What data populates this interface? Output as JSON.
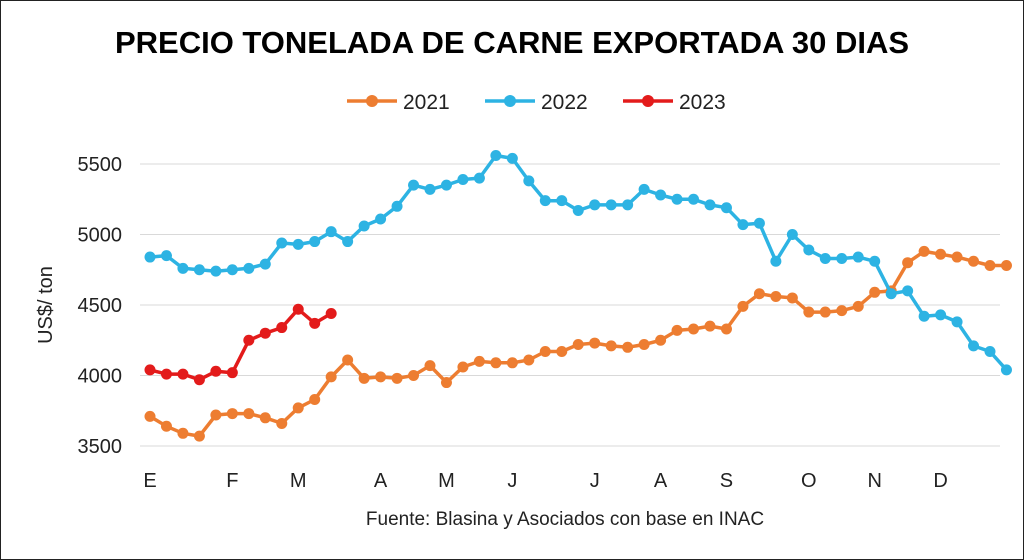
{
  "chart_data": {
    "type": "line",
    "title": "PRECIO TONELADA DE CARNE EXPORTADA 30 DIAS",
    "ylabel": "US$/ ton",
    "source": "Fuente: Blasina y Asociados con base en INAC",
    "ylim": [
      3500,
      5500
    ],
    "yticks": [
      3500,
      4000,
      4500,
      5000,
      5500
    ],
    "grid": true,
    "legend_position": "top",
    "x_week_count": 52,
    "month_ticks": [
      {
        "label": "E",
        "week": 1
      },
      {
        "label": "F",
        "week": 6
      },
      {
        "label": "M",
        "week": 10
      },
      {
        "label": "A",
        "week": 15
      },
      {
        "label": "M",
        "week": 19
      },
      {
        "label": "J",
        "week": 23
      },
      {
        "label": "J",
        "week": 28
      },
      {
        "label": "A",
        "week": 32
      },
      {
        "label": "S",
        "week": 36
      },
      {
        "label": "O",
        "week": 41
      },
      {
        "label": "N",
        "week": 45
      },
      {
        "label": "D",
        "week": 49
      }
    ],
    "series": [
      {
        "name": "2021",
        "color": "#ED7D31",
        "values": [
          3710,
          3640,
          3590,
          3570,
          3720,
          3730,
          3730,
          3700,
          3660,
          3770,
          3830,
          3990,
          4110,
          3980,
          3990,
          3980,
          4000,
          4070,
          3950,
          4060,
          4100,
          4090,
          4090,
          4110,
          4170,
          4170,
          4220,
          4230,
          4210,
          4200,
          4220,
          4250,
          4320,
          4330,
          4350,
          4330,
          4490,
          4580,
          4560,
          4550,
          4450,
          4450,
          4460,
          4490,
          4590,
          4600,
          4800,
          4880,
          4860,
          4840,
          4810,
          4780,
          4780
        ]
      },
      {
        "name": "2022",
        "color": "#2DB3E3",
        "values": [
          4840,
          4850,
          4760,
          4750,
          4740,
          4750,
          4760,
          4790,
          4940,
          4930,
          4950,
          5020,
          4950,
          5060,
          5110,
          5200,
          5350,
          5320,
          5350,
          5390,
          5400,
          5560,
          5540,
          5380,
          5240,
          5240,
          5170,
          5210,
          5210,
          5210,
          5320,
          5280,
          5250,
          5250,
          5210,
          5190,
          5070,
          5080,
          4810,
          5000,
          4890,
          4830,
          4830,
          4840,
          4810,
          4580,
          4600,
          4420,
          4430,
          4380,
          4210,
          4170,
          4040
        ]
      },
      {
        "name": "2023",
        "color": "#E31B1B",
        "values": [
          4040,
          4010,
          4010,
          3970,
          4030,
          4020,
          4250,
          4300,
          4340,
          4470,
          4370,
          4440
        ]
      }
    ]
  }
}
